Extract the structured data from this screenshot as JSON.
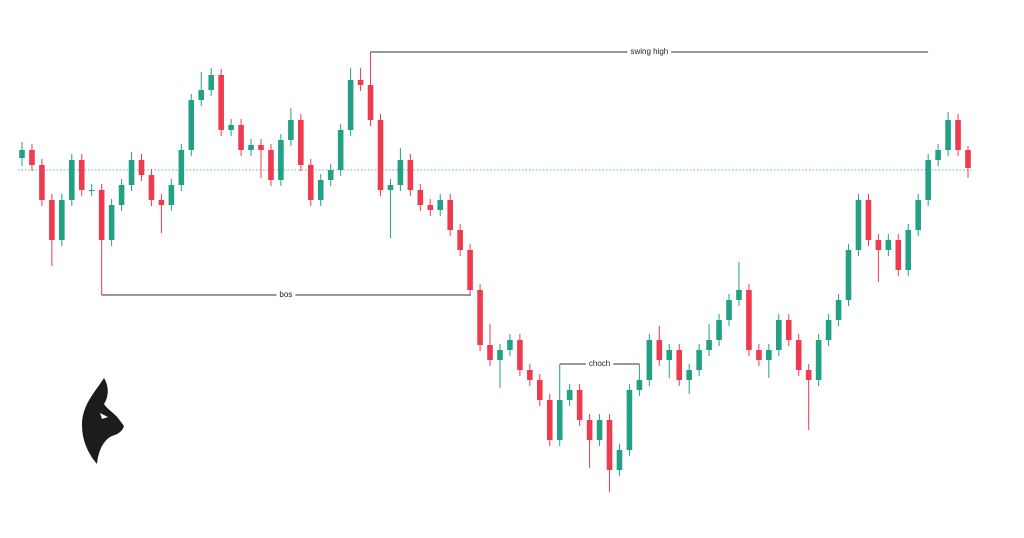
{
  "chart_data": {
    "type": "candlestick",
    "open": [
      380,
      388,
      373,
      338,
      298,
      338,
      378,
      348,
      348,
      298,
      333,
      353,
      378,
      363,
      338,
      333,
      353,
      388,
      438,
      448,
      463,
      408,
      413,
      388,
      393,
      388,
      358,
      398,
      418,
      373,
      338,
      358,
      368,
      408,
      458,
      453,
      418,
      348,
      353,
      378,
      348,
      333,
      328,
      338,
      308,
      288,
      248,
      193,
      178,
      188,
      198,
      168,
      158,
      138,
      98,
      138,
      148,
      118,
      98,
      118,
      68,
      88,
      148,
      158,
      198,
      178,
      188,
      158,
      168,
      188,
      198,
      218,
      238,
      248,
      188,
      178,
      188,
      218,
      198,
      168,
      158,
      198,
      218,
      238,
      288,
      338,
      298,
      288,
      298,
      268,
      308,
      338,
      378,
      388,
      418,
      388
    ],
    "high": [
      396,
      394,
      379,
      344,
      344,
      384,
      384,
      354,
      354,
      339,
      359,
      386,
      384,
      369,
      344,
      359,
      394,
      444,
      466,
      470,
      469,
      419,
      419,
      399,
      399,
      394,
      404,
      430,
      424,
      379,
      364,
      374,
      414,
      470,
      470,
      486,
      424,
      359,
      390,
      384,
      354,
      339,
      344,
      344,
      314,
      294,
      254,
      214,
      194,
      204,
      204,
      174,
      164,
      144,
      174,
      154,
      154,
      124,
      124,
      124,
      94,
      154,
      174,
      204,
      212,
      194,
      194,
      174,
      194,
      214,
      224,
      244,
      276,
      254,
      194,
      194,
      224,
      224,
      204,
      174,
      204,
      224,
      244,
      294,
      344,
      344,
      304,
      304,
      304,
      314,
      344,
      384,
      394,
      426,
      424,
      392
    ],
    "low": [
      372,
      367,
      332,
      272,
      292,
      332,
      342,
      342,
      243,
      292,
      327,
      347,
      357,
      332,
      305,
      327,
      347,
      382,
      432,
      442,
      402,
      402,
      382,
      382,
      360,
      352,
      352,
      392,
      367,
      332,
      332,
      352,
      362,
      402,
      447,
      412,
      342,
      300,
      347,
      342,
      327,
      322,
      322,
      302,
      282,
      242,
      187,
      172,
      150,
      182,
      162,
      152,
      132,
      92,
      92,
      132,
      112,
      70,
      92,
      46,
      62,
      82,
      142,
      152,
      172,
      160,
      152,
      144,
      162,
      182,
      192,
      212,
      232,
      182,
      172,
      160,
      182,
      192,
      162,
      108,
      152,
      192,
      212,
      232,
      282,
      292,
      256,
      282,
      262,
      262,
      302,
      332,
      372,
      382,
      382,
      360
    ],
    "close": [
      388,
      373,
      338,
      298,
      338,
      378,
      348,
      348,
      298,
      333,
      353,
      378,
      363,
      338,
      333,
      353,
      388,
      438,
      448,
      463,
      408,
      413,
      388,
      393,
      388,
      358,
      398,
      418,
      373,
      338,
      358,
      368,
      408,
      458,
      453,
      418,
      348,
      353,
      378,
      348,
      333,
      328,
      338,
      308,
      288,
      248,
      193,
      178,
      188,
      198,
      168,
      158,
      138,
      98,
      138,
      148,
      118,
      98,
      118,
      68,
      88,
      148,
      158,
      198,
      178,
      188,
      158,
      168,
      188,
      198,
      218,
      238,
      248,
      188,
      178,
      188,
      218,
      198,
      168,
      158,
      198,
      218,
      238,
      288,
      338,
      298,
      288,
      298,
      268,
      308,
      338,
      378,
      388,
      418,
      388,
      370
    ],
    "up_color": "#22a186",
    "down_color": "#ef3b4f",
    "ylim": [
      0,
      538
    ],
    "price_line": 368,
    "annotations": [
      {
        "label": "swing high",
        "value": 486,
        "from": 35,
        "to": 91
      },
      {
        "label": "bos",
        "value": 243,
        "from": 8,
        "to": 45
      },
      {
        "label": "choch",
        "value": 174,
        "from": 54,
        "to": 62
      }
    ]
  }
}
